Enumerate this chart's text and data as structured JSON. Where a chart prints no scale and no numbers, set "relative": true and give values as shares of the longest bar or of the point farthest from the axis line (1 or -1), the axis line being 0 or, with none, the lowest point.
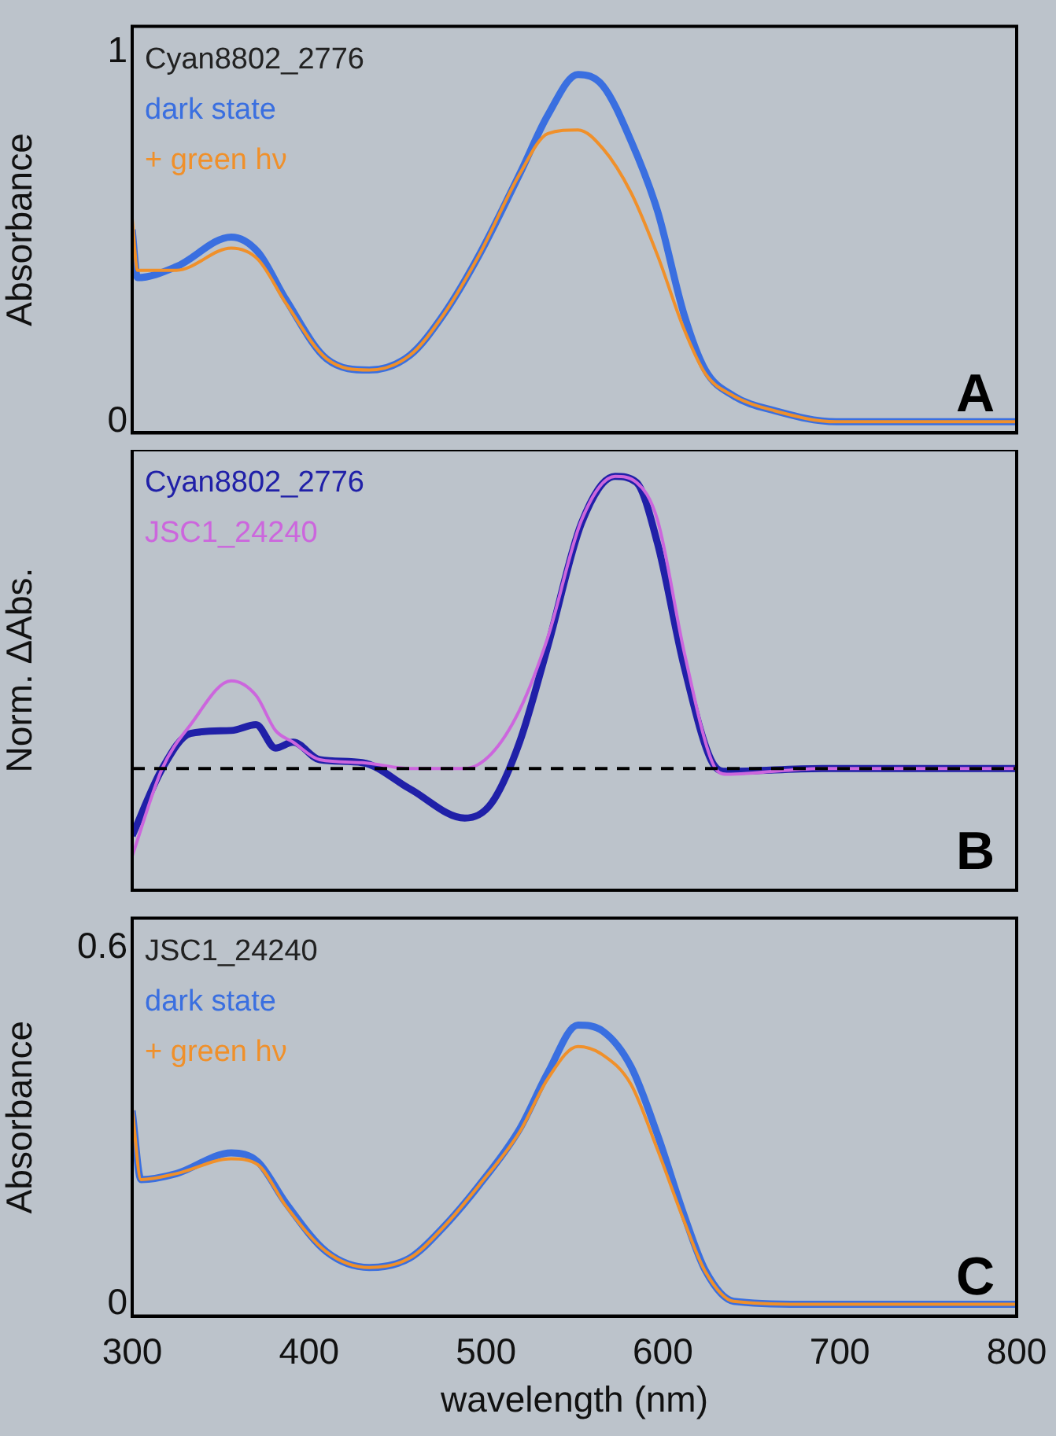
{
  "chart_data": [
    {
      "type": "line",
      "title": "Cyan8802_2776",
      "ylabel": "Absorbance",
      "annotations": [
        "A"
      ],
      "legend": "top left",
      "tick_labels": "y",
      "grid": false,
      "xlim": [
        300,
        800
      ],
      "xticks": [
        300,
        400,
        500,
        600,
        700,
        800
      ],
      "ylim": [
        -0.03,
        1.07
      ],
      "yticks": [
        0,
        1
      ],
      "x": [
        300,
        303,
        325,
        356,
        371,
        387,
        410,
        434,
        457,
        476,
        496,
        519,
        535,
        552,
        566,
        582,
        597,
        612,
        624,
        640,
        663,
        698,
        800
      ],
      "series": [
        {
          "name": "dark state",
          "color": "#3a6fe0",
          "values": [
            0.52,
            0.39,
            0.42,
            0.5,
            0.46,
            0.33,
            0.17,
            0.14,
            0.18,
            0.29,
            0.45,
            0.67,
            0.83,
            0.94,
            0.91,
            0.76,
            0.57,
            0.29,
            0.14,
            0.07,
            0.03,
            0,
            0
          ]
        },
        {
          "name": "+ green hν",
          "color": "#f0902a",
          "values": [
            0.55,
            0.41,
            0.41,
            0.47,
            0.44,
            0.32,
            0.17,
            0.14,
            0.18,
            0.29,
            0.45,
            0.67,
            0.78,
            0.79,
            0.74,
            0.62,
            0.45,
            0.25,
            0.13,
            0.07,
            0.03,
            0,
            0
          ]
        }
      ]
    },
    {
      "type": "line",
      "ylabel": "Norm. ΔAbs.",
      "annotations": [
        "B"
      ],
      "legend": "top left",
      "relative": true,
      "tick_labels": false,
      "grid": false,
      "xlim": [
        300,
        800
      ],
      "xticks": [
        300,
        400,
        500,
        600,
        700,
        800
      ],
      "ref_lines": [
        {
          "axis": "y",
          "value": 0,
          "color": "#000000",
          "line_style": "dashed"
        }
      ],
      "x": [
        300,
        317,
        333,
        356,
        370,
        381,
        391,
        406,
        430,
        457,
        488,
        503,
        519,
        535,
        554,
        573,
        585,
        597,
        612,
        628,
        636,
        690,
        800
      ],
      "series": [
        {
          "name": "Cyan8802_2776",
          "color": "#2020a8",
          "values": [
            -0.23,
            0,
            0.12,
            0.13,
            0.15,
            0.07,
            0.09,
            0.03,
            0.02,
            -0.07,
            -0.17,
            -0.12,
            0.09,
            0.42,
            0.84,
            1,
            0.98,
            0.77,
            0.35,
            0.02,
            -0.01,
            0,
            0
          ]
        },
        {
          "name": "JSC1_24240",
          "color": "#cc66dd",
          "values": [
            -0.3,
            0,
            0.15,
            0.3,
            0.25,
            0.13,
            0.09,
            0.03,
            0.02,
            0,
            0,
            0.05,
            0.2,
            0.45,
            0.85,
            1,
            0.98,
            0.85,
            0.4,
            0.02,
            -0.02,
            0,
            0
          ]
        }
      ]
    },
    {
      "type": "line",
      "title": "JSC1_24240",
      "xlabel": "wavelength (nm)",
      "ylabel": "Absorbance",
      "annotations": [
        "C"
      ],
      "legend": "top left",
      "grid": false,
      "xlim": [
        300,
        800
      ],
      "xticks": [
        300,
        400,
        500,
        600,
        700,
        800
      ],
      "ylim": [
        -0.02,
        0.65
      ],
      "yticks": [
        0,
        0.6
      ],
      "x": [
        300,
        305,
        325,
        356,
        371,
        387,
        410,
        434,
        457,
        476,
        496,
        519,
        535,
        552,
        566,
        582,
        597,
        612,
        624,
        640,
        680,
        800
      ],
      "series": [
        {
          "name": "dark state",
          "color": "#3a6fe0",
          "values": [
            0.326,
            0.21,
            0.22,
            0.255,
            0.24,
            0.17,
            0.088,
            0.062,
            0.078,
            0.13,
            0.2,
            0.295,
            0.39,
            0.47,
            0.46,
            0.4,
            0.285,
            0.15,
            0.057,
            0.005,
            0,
            0
          ]
        },
        {
          "name": "+ green hν",
          "color": "#f0902a",
          "values": [
            0.33,
            0.21,
            0.22,
            0.245,
            0.235,
            0.165,
            0.088,
            0.062,
            0.078,
            0.13,
            0.2,
            0.29,
            0.38,
            0.434,
            0.42,
            0.37,
            0.26,
            0.14,
            0.055,
            0.005,
            0,
            0
          ]
        }
      ]
    }
  ]
}
